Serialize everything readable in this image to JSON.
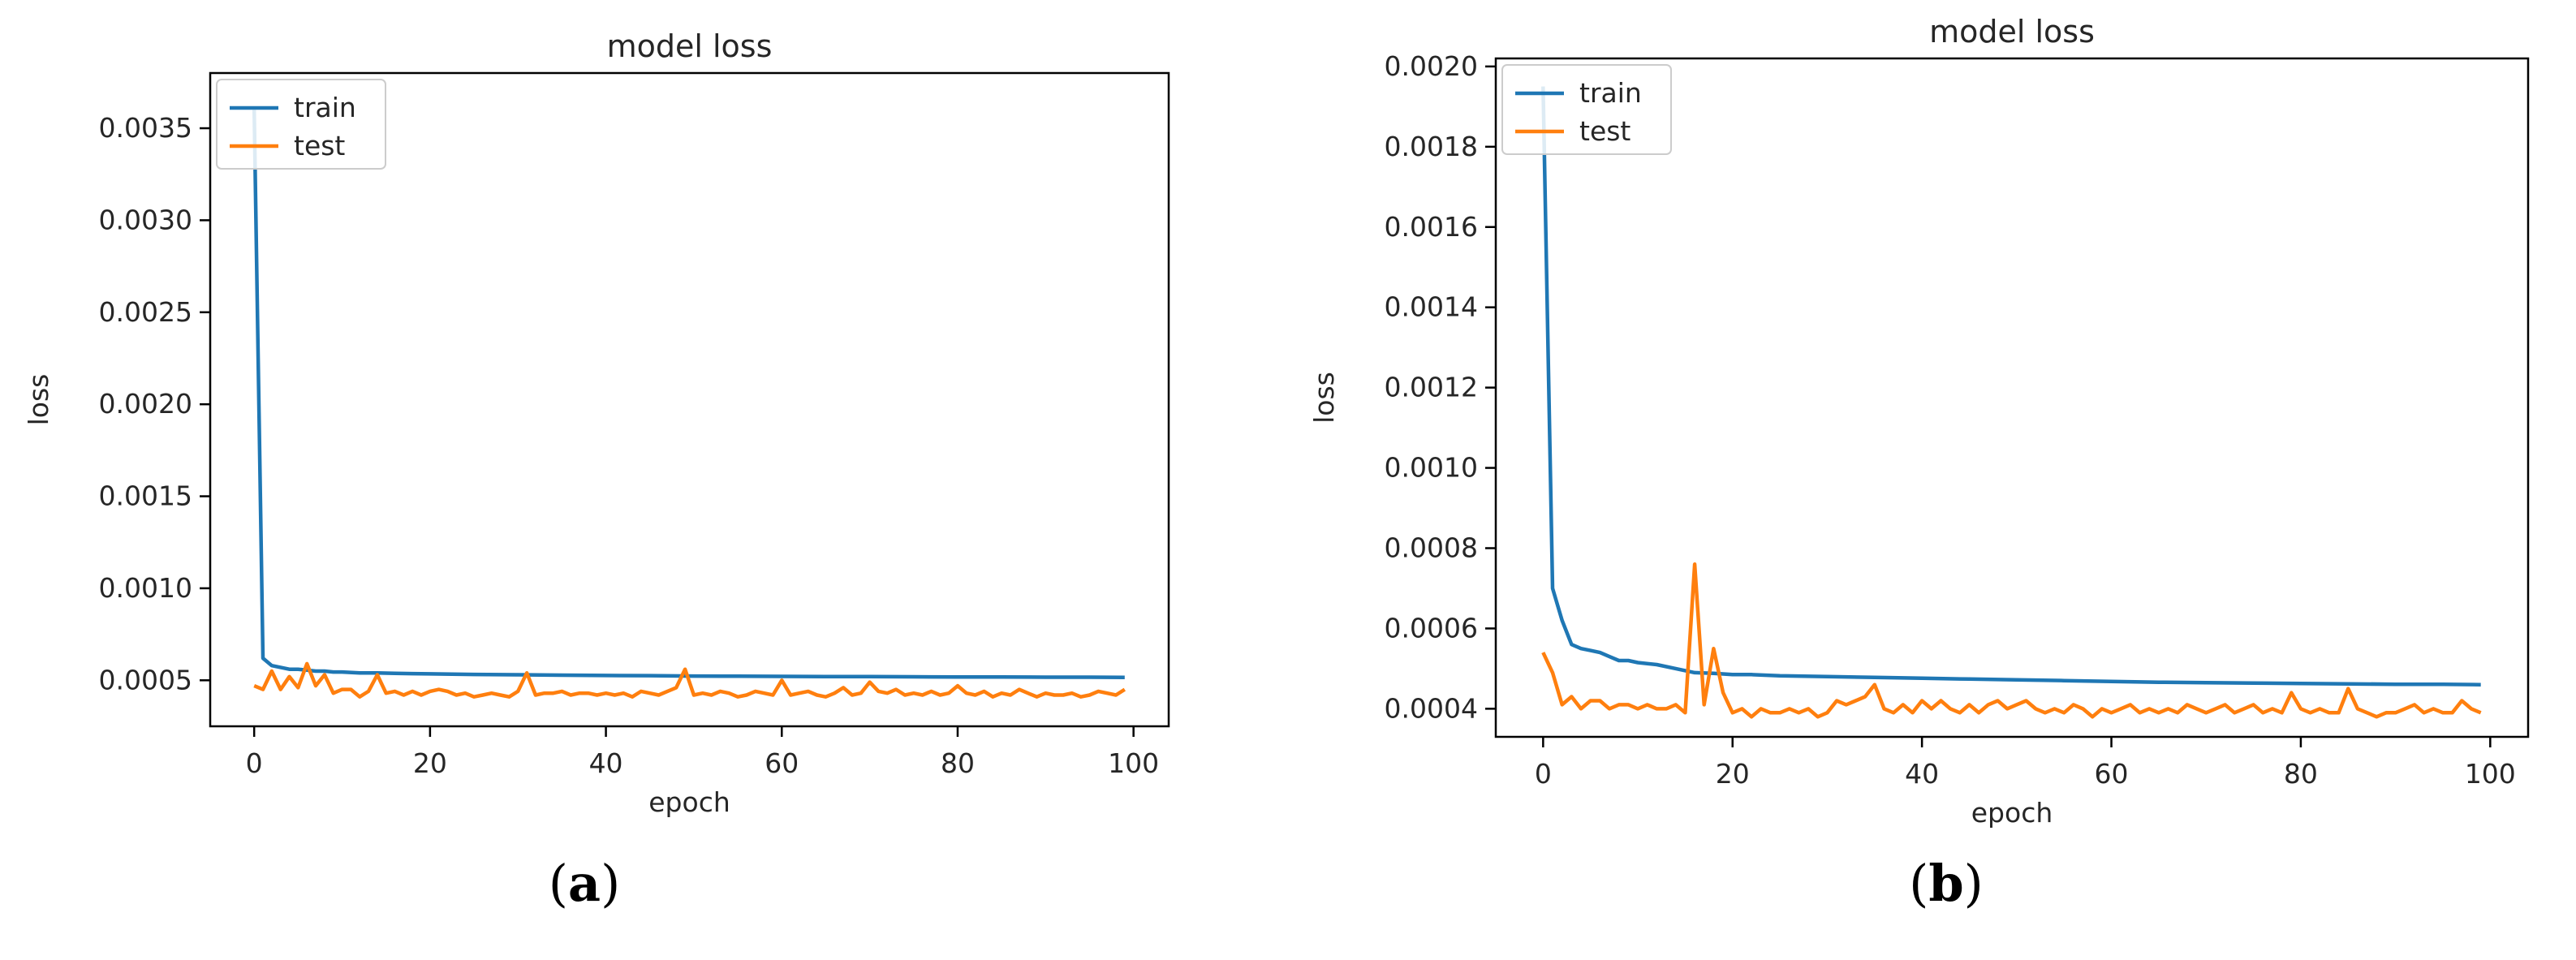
{
  "chart_data": [
    {
      "type": "line",
      "panel_label": "a",
      "title": "model loss",
      "xlabel": "epoch",
      "ylabel": "loss",
      "xlim": [
        -5,
        104
      ],
      "ylim": [
        0.00025,
        0.0038
      ],
      "xticks": [
        0,
        20,
        40,
        60,
        80,
        100
      ],
      "xtick_labels": [
        "0",
        "20",
        "40",
        "60",
        "80",
        "100"
      ],
      "yticks": [
        0.0005,
        0.001,
        0.0015,
        0.002,
        0.0025,
        0.003,
        0.0035
      ],
      "ytick_labels": [
        "0.0005",
        "0.0010",
        "0.0015",
        "0.0020",
        "0.0025",
        "0.0030",
        "0.0035"
      ],
      "grid": false,
      "legend": "top-left",
      "series": [
        {
          "name": "train",
          "color": "#1f77b4",
          "x": [
            0,
            1,
            2,
            3,
            4,
            5,
            6,
            7,
            8,
            9,
            10,
            12,
            14,
            16,
            18,
            20,
            25,
            30,
            35,
            40,
            45,
            50,
            55,
            60,
            65,
            70,
            75,
            80,
            85,
            90,
            95,
            99
          ],
          "y": [
            0.0036,
            0.00062,
            0.00058,
            0.00057,
            0.00056,
            0.00056,
            0.000555,
            0.00055,
            0.00055,
            0.000545,
            0.000545,
            0.00054,
            0.00054,
            0.000538,
            0.000536,
            0.000535,
            0.000532,
            0.00053,
            0.000528,
            0.000526,
            0.000525,
            0.000523,
            0.000522,
            0.000521,
            0.00052,
            0.00052,
            0.000519,
            0.000518,
            0.000518,
            0.000517,
            0.000517,
            0.000516
          ]
        },
        {
          "name": "test",
          "color": "#ff7f0e",
          "x": [
            0,
            1,
            2,
            3,
            4,
            5,
            6,
            7,
            8,
            9,
            10,
            11,
            12,
            13,
            14,
            15,
            16,
            17,
            18,
            19,
            20,
            21,
            22,
            23,
            24,
            25,
            26,
            27,
            28,
            29,
            30,
            31,
            32,
            33,
            34,
            35,
            36,
            37,
            38,
            39,
            40,
            41,
            42,
            43,
            44,
            45,
            46,
            47,
            48,
            49,
            50,
            51,
            52,
            53,
            54,
            55,
            56,
            57,
            58,
            59,
            60,
            61,
            62,
            63,
            64,
            65,
            66,
            67,
            68,
            69,
            70,
            71,
            72,
            73,
            74,
            75,
            76,
            77,
            78,
            79,
            80,
            81,
            82,
            83,
            84,
            85,
            86,
            87,
            88,
            89,
            90,
            91,
            92,
            93,
            94,
            95,
            96,
            97,
            98,
            99
          ],
          "y": [
            0.00047,
            0.00045,
            0.00055,
            0.00045,
            0.00052,
            0.00046,
            0.00059,
            0.00047,
            0.00053,
            0.00043,
            0.00045,
            0.00045,
            0.00041,
            0.00044,
            0.00053,
            0.00043,
            0.00044,
            0.00042,
            0.00044,
            0.00042,
            0.00044,
            0.00045,
            0.00044,
            0.00042,
            0.00043,
            0.00041,
            0.00042,
            0.00043,
            0.00042,
            0.00041,
            0.00044,
            0.00054,
            0.00042,
            0.00043,
            0.00043,
            0.00044,
            0.00042,
            0.00043,
            0.00043,
            0.00042,
            0.00043,
            0.00042,
            0.00043,
            0.00041,
            0.00044,
            0.00043,
            0.00042,
            0.00044,
            0.00046,
            0.00056,
            0.00042,
            0.00043,
            0.00042,
            0.00044,
            0.00043,
            0.00041,
            0.00042,
            0.00044,
            0.00043,
            0.00042,
            0.0005,
            0.00042,
            0.00043,
            0.00044,
            0.00042,
            0.00041,
            0.00043,
            0.00046,
            0.00042,
            0.00043,
            0.00049,
            0.00044,
            0.00043,
            0.00045,
            0.00042,
            0.00043,
            0.00042,
            0.00044,
            0.00042,
            0.00043,
            0.00047,
            0.00043,
            0.00042,
            0.00044,
            0.00041,
            0.00043,
            0.00042,
            0.00045,
            0.00043,
            0.00041,
            0.00043,
            0.00042,
            0.00042,
            0.00043,
            0.00041,
            0.00042,
            0.00044,
            0.00043,
            0.00042,
            0.00045
          ]
        }
      ]
    },
    {
      "type": "line",
      "panel_label": "b",
      "title": "model loss",
      "xlabel": "epoch",
      "ylabel": "loss",
      "xlim": [
        -5,
        104
      ],
      "ylim": [
        0.00033,
        0.00202
      ],
      "xticks": [
        0,
        20,
        40,
        60,
        80,
        100
      ],
      "xtick_labels": [
        "0",
        "20",
        "40",
        "60",
        "80",
        "100"
      ],
      "yticks": [
        0.0004,
        0.0006,
        0.0008,
        0.001,
        0.0012,
        0.0014,
        0.0016,
        0.0018,
        0.002
      ],
      "ytick_labels": [
        "0.0004",
        "0.0006",
        "0.0008",
        "0.0010",
        "0.0012",
        "0.0014",
        "0.0016",
        "0.0018",
        "0.0020"
      ],
      "grid": false,
      "legend": "top-left",
      "series": [
        {
          "name": "train",
          "color": "#1f77b4",
          "x": [
            0,
            1,
            2,
            3,
            4,
            5,
            6,
            7,
            8,
            9,
            10,
            12,
            14,
            16,
            18,
            20,
            22,
            25,
            30,
            35,
            40,
            45,
            50,
            55,
            60,
            65,
            70,
            75,
            80,
            85,
            90,
            95,
            99
          ],
          "y": [
            0.00195,
            0.0007,
            0.00062,
            0.00056,
            0.00055,
            0.000545,
            0.00054,
            0.00053,
            0.00052,
            0.00052,
            0.000515,
            0.00051,
            0.0005,
            0.00049,
            0.000488,
            0.000485,
            0.000485,
            0.000482,
            0.00048,
            0.000478,
            0.000476,
            0.000474,
            0.000472,
            0.00047,
            0.000468,
            0.000466,
            0.000465,
            0.000464,
            0.000463,
            0.000462,
            0.000461,
            0.000461,
            0.00046
          ]
        },
        {
          "name": "test",
          "color": "#ff7f0e",
          "x": [
            0,
            1,
            2,
            3,
            4,
            5,
            6,
            7,
            8,
            9,
            10,
            11,
            12,
            13,
            14,
            15,
            16,
            17,
            18,
            19,
            20,
            21,
            22,
            23,
            24,
            25,
            26,
            27,
            28,
            29,
            30,
            31,
            32,
            33,
            34,
            35,
            36,
            37,
            38,
            39,
            40,
            41,
            42,
            43,
            44,
            45,
            46,
            47,
            48,
            49,
            50,
            51,
            52,
            53,
            54,
            55,
            56,
            57,
            58,
            59,
            60,
            61,
            62,
            63,
            64,
            65,
            66,
            67,
            68,
            69,
            70,
            71,
            72,
            73,
            74,
            75,
            76,
            77,
            78,
            79,
            80,
            81,
            82,
            83,
            84,
            85,
            86,
            87,
            88,
            89,
            90,
            91,
            92,
            93,
            94,
            95,
            96,
            97,
            98,
            99
          ],
          "y": [
            0.00054,
            0.00049,
            0.00041,
            0.00043,
            0.0004,
            0.00042,
            0.00042,
            0.0004,
            0.00041,
            0.00041,
            0.0004,
            0.00041,
            0.0004,
            0.0004,
            0.00041,
            0.00039,
            0.00076,
            0.00041,
            0.00055,
            0.00044,
            0.00039,
            0.0004,
            0.00038,
            0.0004,
            0.00039,
            0.00039,
            0.0004,
            0.00039,
            0.0004,
            0.00038,
            0.00039,
            0.00042,
            0.00041,
            0.00042,
            0.00043,
            0.00046,
            0.0004,
            0.00039,
            0.00041,
            0.00039,
            0.00042,
            0.0004,
            0.00042,
            0.0004,
            0.00039,
            0.00041,
            0.00039,
            0.00041,
            0.00042,
            0.0004,
            0.00041,
            0.00042,
            0.0004,
            0.00039,
            0.0004,
            0.00039,
            0.00041,
            0.0004,
            0.00038,
            0.0004,
            0.00039,
            0.0004,
            0.00041,
            0.00039,
            0.0004,
            0.00039,
            0.0004,
            0.00039,
            0.00041,
            0.0004,
            0.00039,
            0.0004,
            0.00041,
            0.00039,
            0.0004,
            0.00041,
            0.00039,
            0.0004,
            0.00039,
            0.00044,
            0.0004,
            0.00039,
            0.0004,
            0.00039,
            0.00039,
            0.00045,
            0.0004,
            0.00039,
            0.00038,
            0.00039,
            0.00039,
            0.0004,
            0.00041,
            0.00039,
            0.0004,
            0.00039,
            0.00039,
            0.00042,
            0.0004,
            0.00039
          ]
        }
      ]
    }
  ]
}
